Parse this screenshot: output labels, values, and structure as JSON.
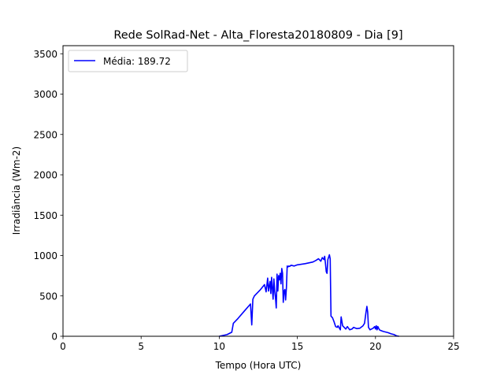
{
  "chart_data": {
    "type": "line",
    "title": "Rede SolRad-Net - Alta_Floresta20180809 - Dia [9]",
    "xlabel": "Tempo (Hora UTC)",
    "ylabel": "Irradiância (Wm-2)",
    "xlim": [
      0,
      25
    ],
    "ylim": [
      0,
      3600
    ],
    "xticks": [
      0,
      5,
      10,
      15,
      20,
      25
    ],
    "yticks": [
      0,
      500,
      1000,
      1500,
      2000,
      2500,
      3000,
      3500
    ],
    "grid": false,
    "legend_position": "upper left",
    "series": [
      {
        "name": "Média: 189.72",
        "color": "#0000ff",
        "x": [
          10.0,
          10.5,
          10.8,
          10.9,
          11.2,
          11.6,
          12.0,
          12.08,
          12.15,
          12.25,
          12.6,
          12.9,
          13.0,
          13.1,
          13.15,
          13.25,
          13.3,
          13.35,
          13.45,
          13.5,
          13.55,
          13.6,
          13.65,
          13.7,
          13.75,
          13.8,
          13.85,
          13.9,
          13.95,
          14.0,
          14.05,
          14.1,
          14.15,
          14.2,
          14.25,
          14.3,
          14.35,
          14.4,
          14.45,
          14.5,
          14.6,
          14.8,
          15.0,
          15.5,
          16.0,
          16.2,
          16.35,
          16.5,
          16.6,
          16.7,
          16.75,
          16.8,
          16.85,
          16.9,
          16.95,
          17.05,
          17.1,
          17.15,
          17.25,
          17.35,
          17.45,
          17.55,
          17.6,
          17.75,
          17.8,
          17.9,
          18.1,
          18.2,
          18.35,
          18.5,
          18.6,
          18.8,
          19.0,
          19.2,
          19.3,
          19.38,
          19.45,
          19.5,
          19.55,
          19.65,
          19.75,
          19.85,
          19.95,
          20.0,
          20.05,
          20.1,
          20.15,
          20.25,
          20.35,
          20.5,
          20.8,
          21.0,
          21.2,
          21.35,
          21.5
        ],
        "y": [
          0,
          20,
          50,
          160,
          220,
          310,
          400,
          140,
          460,
          500,
          570,
          640,
          550,
          720,
          560,
          680,
          530,
          730,
          460,
          710,
          560,
          480,
          350,
          770,
          560,
          750,
          700,
          780,
          650,
          840,
          780,
          420,
          560,
          580,
          450,
          600,
          870,
          860,
          870,
          865,
          880,
          870,
          885,
          900,
          920,
          940,
          960,
          930,
          975,
          950,
          990,
          900,
          800,
          780,
          950,
          1010,
          960,
          250,
          230,
          180,
          120,
          110,
          130,
          80,
          240,
          130,
          90,
          120,
          80,
          90,
          110,
          95,
          100,
          130,
          160,
          280,
          370,
          300,
          110,
          80,
          90,
          100,
          120,
          90,
          130,
          80,
          120,
          80,
          70,
          60,
          45,
          30,
          20,
          5,
          0
        ]
      }
    ]
  }
}
